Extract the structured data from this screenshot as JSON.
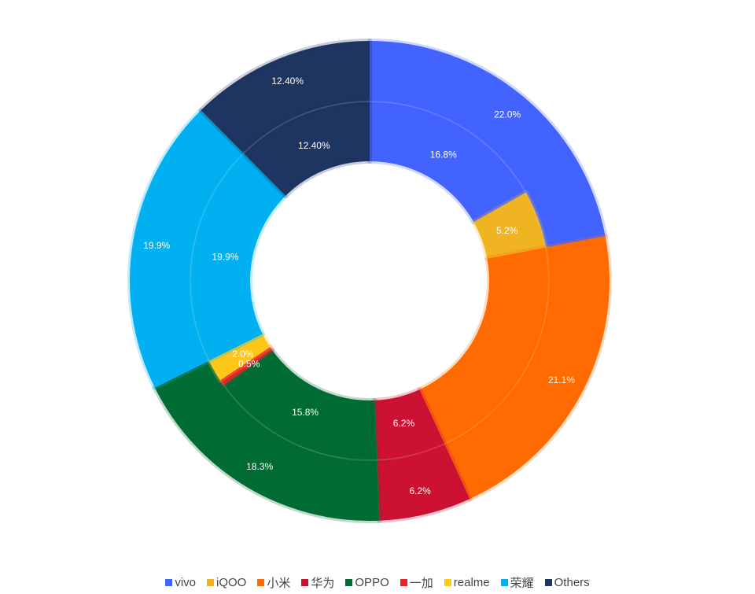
{
  "chart_data": {
    "type": "pie",
    "title": "",
    "outer_ring": {
      "slices": [
        {
          "name": "vivo",
          "label": "22.0%",
          "value": 22.0,
          "color": "#4363FF"
        },
        {
          "name": "小米",
          "label": "21.1%",
          "value": 21.1,
          "color": "#FF6B00"
        },
        {
          "name": "华为",
          "label": "6.2%",
          "value": 6.2,
          "color": "#CC1133"
        },
        {
          "name": "OPPO",
          "label": "18.3%",
          "value": 18.3,
          "color": "#006B33"
        },
        {
          "name": "荣耀",
          "label": "19.9%",
          "value": 19.9,
          "color": "#00B0F0"
        },
        {
          "name": "Others",
          "label": "12.40%",
          "value": 12.4,
          "color": "#1E3461"
        }
      ]
    },
    "inner_ring": {
      "slices": [
        {
          "name": "vivo",
          "label": "16.8%",
          "value": 16.8,
          "color": "#4363FF"
        },
        {
          "name": "iQOO",
          "label": "5.2%",
          "value": 5.2,
          "color": "#F0B422"
        },
        {
          "name": "小米",
          "label": "",
          "value": 21.1,
          "color": "#FF6B00"
        },
        {
          "name": "华为",
          "label": "6.2%",
          "value": 6.2,
          "color": "#CC1133"
        },
        {
          "name": "OPPO",
          "label": "15.8%",
          "value": 15.8,
          "color": "#006B33"
        },
        {
          "name": "一加",
          "label": "0.5%",
          "value": 0.5,
          "color": "#E8212A"
        },
        {
          "name": "realme",
          "label": "2.0%",
          "value": 2.0,
          "color": "#FFC61A"
        },
        {
          "name": "荣耀",
          "label": "19.9%",
          "value": 19.9,
          "color": "#00B0F0"
        },
        {
          "name": "Others",
          "label": "12.40%",
          "value": 12.4,
          "color": "#1E3461"
        }
      ]
    },
    "legend": {
      "position": "bottom-center",
      "items": [
        {
          "name": "vivo",
          "color": "#4363FF"
        },
        {
          "name": "iQOO",
          "color": "#F0B422"
        },
        {
          "name": "小米",
          "color": "#FF6B00"
        },
        {
          "name": "华为",
          "color": "#CC1133"
        },
        {
          "name": "OPPO",
          "color": "#006B33"
        },
        {
          "name": "一加",
          "color": "#E8212A"
        },
        {
          "name": "realme",
          "color": "#FFC61A"
        },
        {
          "name": "荣耀",
          "color": "#00B0F0"
        },
        {
          "name": "Others",
          "color": "#1E3461"
        }
      ]
    }
  }
}
